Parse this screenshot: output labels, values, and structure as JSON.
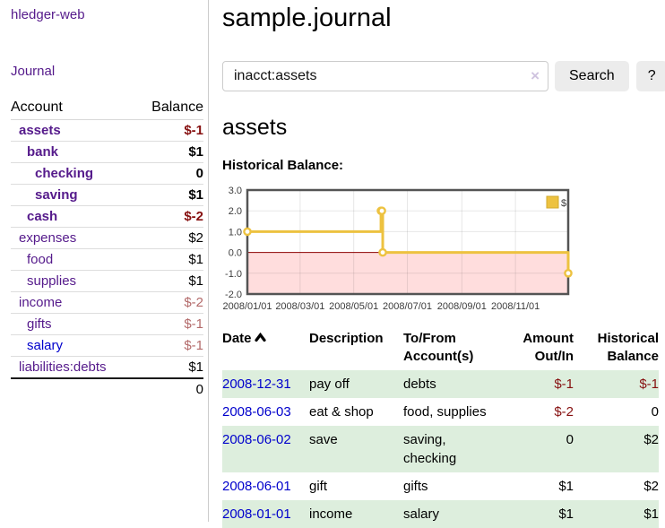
{
  "app": {
    "brand": "hledger-web",
    "nav_journal": "Journal"
  },
  "sidebar": {
    "accounts_header": {
      "account": "Account",
      "balance": "Balance"
    },
    "accounts": [
      {
        "name": "assets",
        "depth": 1,
        "bold": true,
        "link_class": "purple",
        "balance": "$-1",
        "balance_class": "neg-strong"
      },
      {
        "name": "bank",
        "depth": 2,
        "bold": true,
        "link_class": "purple",
        "balance": "$1",
        "balance_class": ""
      },
      {
        "name": "checking",
        "depth": 3,
        "bold": true,
        "link_class": "purple",
        "balance": "0",
        "balance_class": ""
      },
      {
        "name": "saving",
        "depth": 3,
        "bold": true,
        "link_class": "purple",
        "balance": "$1",
        "balance_class": ""
      },
      {
        "name": "cash",
        "depth": 2,
        "bold": true,
        "link_class": "purple",
        "balance": "$-2",
        "balance_class": "neg-strong"
      },
      {
        "name": "expenses",
        "depth": 1,
        "bold": false,
        "link_class": "purple",
        "balance": "$2",
        "balance_class": ""
      },
      {
        "name": "food",
        "depth": 2,
        "bold": false,
        "link_class": "purple",
        "balance": "$1",
        "balance_class": ""
      },
      {
        "name": "supplies",
        "depth": 2,
        "bold": false,
        "link_class": "purple",
        "balance": "$1",
        "balance_class": ""
      },
      {
        "name": "income",
        "depth": 1,
        "bold": false,
        "link_class": "purple",
        "balance": "$-2",
        "balance_class": "neg-dim"
      },
      {
        "name": "gifts",
        "depth": 2,
        "bold": false,
        "link_class": "purple",
        "balance": "$-1",
        "balance_class": "neg-dim"
      },
      {
        "name": "salary",
        "depth": 2,
        "bold": false,
        "link_class": "blue",
        "balance": "$-1",
        "balance_class": "neg-dim"
      },
      {
        "name": "liabilities:debts",
        "depth": 1,
        "bold": false,
        "link_class": "purple",
        "balance": "$1",
        "balance_class": ""
      }
    ],
    "total": "0"
  },
  "header": {
    "title": "sample.journal"
  },
  "search": {
    "value": "inacct:assets",
    "clear_icon": "×",
    "button": "Search",
    "help_button": "?"
  },
  "account_page": {
    "title": "assets",
    "chart_label": "Historical Balance:"
  },
  "chart_data": {
    "type": "line",
    "step": true,
    "title": "Historical Balance:",
    "series": [
      {
        "name": "$",
        "color": "#EDC240",
        "x": [
          "2008-01-01",
          "2008-06-01",
          "2008-06-02",
          "2008-06-03",
          "2008-12-31"
        ],
        "y": [
          1,
          2,
          2,
          0,
          -1
        ]
      }
    ],
    "x_range": [
      "2008-01-01",
      "2008-12-31"
    ],
    "x_ticks": [
      "2008/01/01",
      "2008/03/01",
      "2008/05/01",
      "2008/07/01",
      "2008/09/01",
      "2008/11/01"
    ],
    "y_ticks": [
      3.0,
      2.0,
      1.0,
      0.0,
      -1.0,
      -2.0
    ],
    "ylim": [
      -2,
      3
    ],
    "grid": true,
    "legend_position": "top-right",
    "negative_region_color": "#ffdddd",
    "zero_line_color": "#8b0000"
  },
  "register": {
    "columns": [
      "Date",
      "Description",
      "To/From Account(s)",
      "Amount Out/In",
      "Historical Balance"
    ],
    "rows": [
      {
        "date": "2008-12-31",
        "description": "pay off",
        "accounts": "debts",
        "amount": "$-1",
        "amount_negative": true,
        "balance": "$-1",
        "balance_negative": true
      },
      {
        "date": "2008-06-03",
        "description": "eat & shop",
        "accounts": "food, supplies",
        "amount": "$-2",
        "amount_negative": true,
        "balance": "0",
        "balance_negative": false
      },
      {
        "date": "2008-06-02",
        "description": "save",
        "accounts": "saving, checking",
        "amount": "0",
        "amount_negative": false,
        "balance": "$2",
        "balance_negative": false
      },
      {
        "date": "2008-06-01",
        "description": "gift",
        "accounts": "gifts",
        "amount": "$1",
        "amount_negative": false,
        "balance": "$2",
        "balance_negative": false
      },
      {
        "date": "2008-01-01",
        "description": "income",
        "accounts": "salary",
        "amount": "$1",
        "amount_negative": false,
        "balance": "$1",
        "balance_negative": false
      }
    ]
  },
  "colors": {
    "link_purple": "#551a8b",
    "link_blue": "#0000cc",
    "negative_strong": "#861010",
    "negative_dim": "#b36a6a",
    "row_stripe_green": "#ddeedd",
    "series_yellow": "#EDC240",
    "negative_region_pink": "#ffdddd",
    "zero_line_red": "#8b0000",
    "button_gray": "#ececec"
  }
}
